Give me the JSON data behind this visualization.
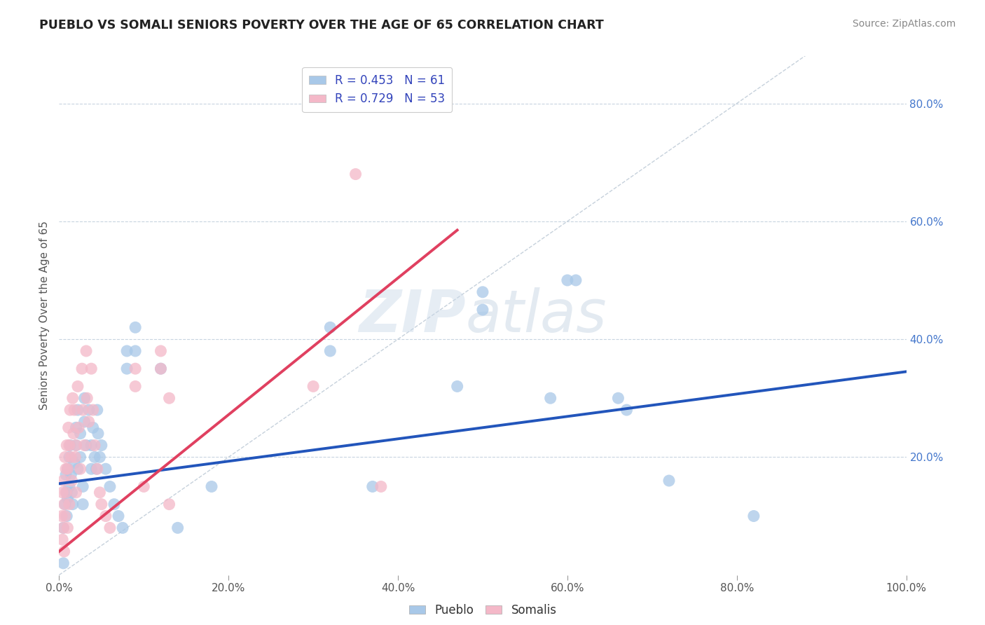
{
  "title": "PUEBLO VS SOMALI SENIORS POVERTY OVER THE AGE OF 65 CORRELATION CHART",
  "source_text": "Source: ZipAtlas.com",
  "ylabel": "Seniors Poverty Over the Age of 65",
  "xlim": [
    0,
    1.0
  ],
  "ylim": [
    0.0,
    0.88
  ],
  "xtick_vals": [
    0.0,
    0.2,
    0.4,
    0.6,
    0.8,
    1.0
  ],
  "xtick_labels": [
    "0.0%",
    "20.0%",
    "40.0%",
    "60.0%",
    "80.0%",
    "100.0%"
  ],
  "ytick_vals": [
    0.2,
    0.4,
    0.6,
    0.8
  ],
  "ytick_labels": [
    "20.0%",
    "40.0%",
    "60.0%",
    "80.0%"
  ],
  "pueblo_color": "#a8c8e8",
  "somali_color": "#f4b8c8",
  "pueblo_line_color": "#2255bb",
  "somali_line_color": "#e04060",
  "diagonal_color": "#c0ccd8",
  "r_pueblo": 0.453,
  "n_pueblo": 61,
  "r_somali": 0.729,
  "n_somali": 53,
  "legend_label_pueblo": "Pueblo",
  "legend_label_somali": "Somalis",
  "watermark_zip": "ZIP",
  "watermark_atlas": "atlas",
  "pueblo_line": [
    0.0,
    0.155,
    1.0,
    0.345
  ],
  "somali_line": [
    0.0,
    0.04,
    0.47,
    0.585
  ],
  "pueblo_points": [
    [
      0.005,
      0.08
    ],
    [
      0.005,
      0.02
    ],
    [
      0.007,
      0.12
    ],
    [
      0.008,
      0.17
    ],
    [
      0.009,
      0.14
    ],
    [
      0.009,
      0.1
    ],
    [
      0.01,
      0.18
    ],
    [
      0.01,
      0.13
    ],
    [
      0.012,
      0.2
    ],
    [
      0.012,
      0.15
    ],
    [
      0.013,
      0.22
    ],
    [
      0.014,
      0.17
    ],
    [
      0.015,
      0.14
    ],
    [
      0.016,
      0.12
    ],
    [
      0.018,
      0.19
    ],
    [
      0.02,
      0.25
    ],
    [
      0.02,
      0.22
    ],
    [
      0.022,
      0.28
    ],
    [
      0.022,
      0.18
    ],
    [
      0.025,
      0.24
    ],
    [
      0.025,
      0.2
    ],
    [
      0.028,
      0.15
    ],
    [
      0.028,
      0.12
    ],
    [
      0.03,
      0.3
    ],
    [
      0.03,
      0.26
    ],
    [
      0.032,
      0.22
    ],
    [
      0.035,
      0.28
    ],
    [
      0.038,
      0.22
    ],
    [
      0.038,
      0.18
    ],
    [
      0.04,
      0.25
    ],
    [
      0.042,
      0.2
    ],
    [
      0.044,
      0.18
    ],
    [
      0.045,
      0.28
    ],
    [
      0.046,
      0.24
    ],
    [
      0.048,
      0.2
    ],
    [
      0.05,
      0.22
    ],
    [
      0.055,
      0.18
    ],
    [
      0.06,
      0.15
    ],
    [
      0.065,
      0.12
    ],
    [
      0.07,
      0.1
    ],
    [
      0.075,
      0.08
    ],
    [
      0.08,
      0.38
    ],
    [
      0.08,
      0.35
    ],
    [
      0.09,
      0.42
    ],
    [
      0.09,
      0.38
    ],
    [
      0.12,
      0.35
    ],
    [
      0.14,
      0.08
    ],
    [
      0.18,
      0.15
    ],
    [
      0.32,
      0.42
    ],
    [
      0.32,
      0.38
    ],
    [
      0.37,
      0.15
    ],
    [
      0.47,
      0.32
    ],
    [
      0.5,
      0.48
    ],
    [
      0.5,
      0.45
    ],
    [
      0.58,
      0.3
    ],
    [
      0.6,
      0.5
    ],
    [
      0.61,
      0.5
    ],
    [
      0.66,
      0.3
    ],
    [
      0.67,
      0.28
    ],
    [
      0.72,
      0.16
    ],
    [
      0.82,
      0.1
    ]
  ],
  "somali_points": [
    [
      0.003,
      0.1
    ],
    [
      0.004,
      0.06
    ],
    [
      0.004,
      0.14
    ],
    [
      0.005,
      0.08
    ],
    [
      0.005,
      0.16
    ],
    [
      0.006,
      0.12
    ],
    [
      0.006,
      0.04
    ],
    [
      0.007,
      0.1
    ],
    [
      0.007,
      0.2
    ],
    [
      0.008,
      0.14
    ],
    [
      0.008,
      0.18
    ],
    [
      0.009,
      0.22
    ],
    [
      0.01,
      0.08
    ],
    [
      0.01,
      0.18
    ],
    [
      0.011,
      0.25
    ],
    [
      0.012,
      0.12
    ],
    [
      0.012,
      0.22
    ],
    [
      0.013,
      0.28
    ],
    [
      0.014,
      0.2
    ],
    [
      0.015,
      0.16
    ],
    [
      0.016,
      0.3
    ],
    [
      0.017,
      0.24
    ],
    [
      0.018,
      0.28
    ],
    [
      0.019,
      0.2
    ],
    [
      0.02,
      0.22
    ],
    [
      0.02,
      0.14
    ],
    [
      0.022,
      0.32
    ],
    [
      0.023,
      0.25
    ],
    [
      0.025,
      0.18
    ],
    [
      0.027,
      0.35
    ],
    [
      0.028,
      0.28
    ],
    [
      0.03,
      0.22
    ],
    [
      0.032,
      0.38
    ],
    [
      0.033,
      0.3
    ],
    [
      0.035,
      0.26
    ],
    [
      0.038,
      0.35
    ],
    [
      0.04,
      0.28
    ],
    [
      0.042,
      0.22
    ],
    [
      0.045,
      0.18
    ],
    [
      0.048,
      0.14
    ],
    [
      0.05,
      0.12
    ],
    [
      0.055,
      0.1
    ],
    [
      0.06,
      0.08
    ],
    [
      0.09,
      0.35
    ],
    [
      0.09,
      0.32
    ],
    [
      0.1,
      0.15
    ],
    [
      0.12,
      0.38
    ],
    [
      0.12,
      0.35
    ],
    [
      0.13,
      0.3
    ],
    [
      0.13,
      0.12
    ],
    [
      0.3,
      0.32
    ],
    [
      0.35,
      0.68
    ],
    [
      0.38,
      0.15
    ]
  ]
}
